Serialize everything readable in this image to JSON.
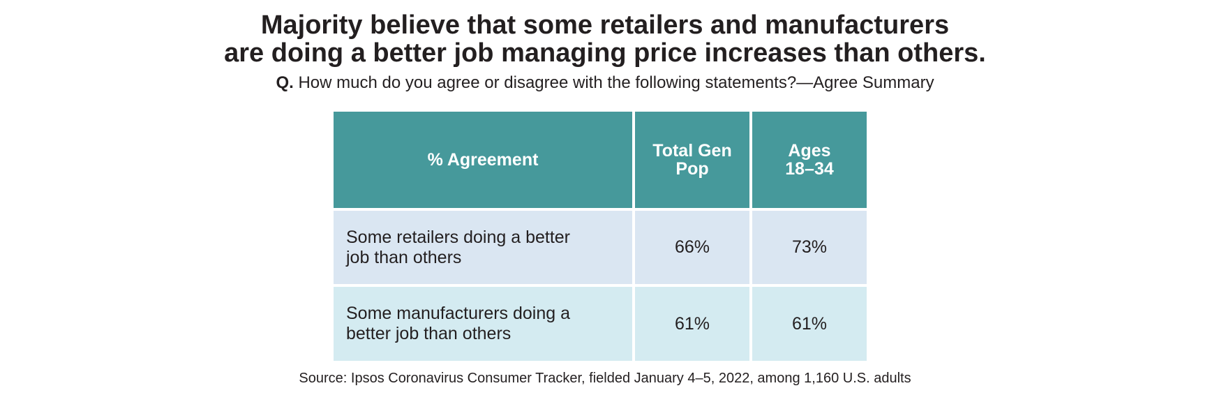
{
  "title_line1": "Majority believe that some retailers and manufacturers",
  "title_line2": "are doing a better job managing price increases than others.",
  "question_prefix": "Q.",
  "question_text": "How much do you agree or disagree with the following statements?—Agree Summary",
  "colors": {
    "header_bg": "#46999b",
    "header_text": "#ffffff",
    "row_1_bg": "#dae6f2",
    "row_2_bg": "#d4ebf1",
    "text": "#231f20"
  },
  "chart_data": {
    "type": "table",
    "columns": [
      "% Agreement",
      "Total Gen Pop",
      "Ages 18–34"
    ],
    "columns_display": [
      [
        "% Agreement"
      ],
      [
        "Total Gen",
        "Pop"
      ],
      [
        "Ages",
        "18–34"
      ]
    ],
    "rows": [
      {
        "label": "Some retailers doing a better job than others",
        "label_lines": [
          "Some retailers doing a better",
          "job than others"
        ],
        "values": [
          "66%",
          "73%"
        ]
      },
      {
        "label": "Some manufacturers doing a better job than others",
        "label_lines": [
          "Some manufacturers doing a",
          "better job than others"
        ],
        "values": [
          "61%",
          "61%"
        ]
      }
    ]
  },
  "source": "Source: Ipsos Coronavirus Consumer Tracker, fielded January 4–5, 2022, among 1,160 U.S. adults"
}
